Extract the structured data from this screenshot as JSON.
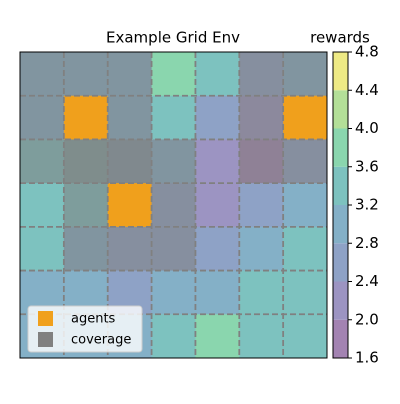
{
  "chart_data": {
    "type": "grid-env",
    "title": "Example Grid Env",
    "colorbar_label": "rewards",
    "grid": true,
    "z": [
      [
        3.0,
        3.0,
        3.0,
        3.8,
        3.2,
        2.6,
        3.0
      ],
      [
        2.9,
        2.9,
        3.0,
        3.3,
        2.5,
        2.2,
        2.9
      ],
      [
        3.3,
        3.2,
        3.0,
        3.0,
        2.2,
        1.8,
        2.7
      ],
      [
        3.5,
        3.3,
        3.0,
        2.6,
        2.3,
        2.4,
        2.9
      ],
      [
        3.4,
        3.1,
        2.7,
        2.6,
        2.7,
        2.9,
        3.2
      ],
      [
        3.1,
        2.8,
        2.7,
        2.8,
        3.0,
        3.2,
        3.5
      ],
      [
        2.9,
        2.8,
        2.9,
        3.3,
        3.6,
        3.2,
        3.3
      ]
    ],
    "clim": [
      1.6,
      4.8
    ],
    "cbar_ticks": [
      1.6,
      {
        "value": 2.0,
        "label": "2.0"
      },
      2.4,
      2.8,
      3.2,
      3.6,
      {
        "value": 4.0,
        "label": "4.0"
      },
      4.4,
      4.8
    ],
    "level_colors": [
      "#a383b2",
      "#9c94c2",
      "#8ea2c6",
      "#84b0c7",
      "#7dc2bf",
      "#8ad6ae",
      "#b3df98",
      "#eeea85"
    ],
    "agents": {
      "name": "agents",
      "color": "#f0a01c",
      "cells": [
        [
          1,
          1
        ],
        [
          6,
          1
        ],
        [
          2,
          3
        ]
      ]
    },
    "coverage": {
      "name": "coverage",
      "color": "#808080",
      "rects": [
        [
          0,
          0,
          3,
          3
        ],
        [
          5,
          0,
          2,
          3
        ],
        [
          1,
          2,
          3,
          3
        ]
      ]
    }
  }
}
